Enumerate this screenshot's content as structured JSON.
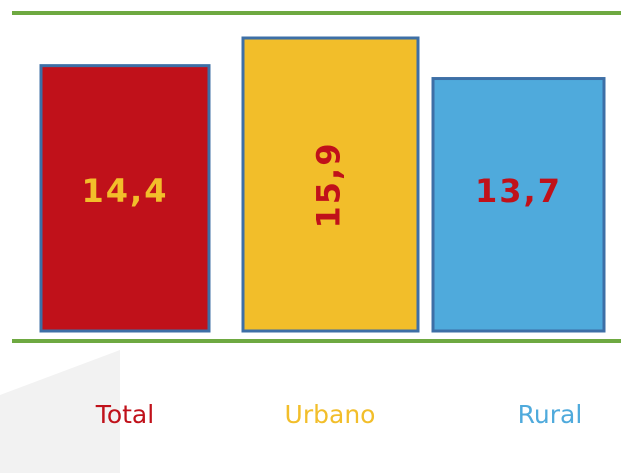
{
  "chart_data": {
    "type": "bar",
    "categories": [
      "Total",
      "Urbano",
      "Rural"
    ],
    "values": [
      14.4,
      15.9,
      13.7
    ],
    "value_labels": [
      "14,4",
      "15,9",
      "13,7"
    ],
    "colors": [
      "#c0111a",
      "#f2be2a",
      "#4faadc"
    ],
    "value_label_colors": [
      "#f2be2a",
      "#c0111a",
      "#c0111a"
    ],
    "category_label_colors": [
      "#c0111a",
      "#f2be2a",
      "#4faadc"
    ]
  }
}
